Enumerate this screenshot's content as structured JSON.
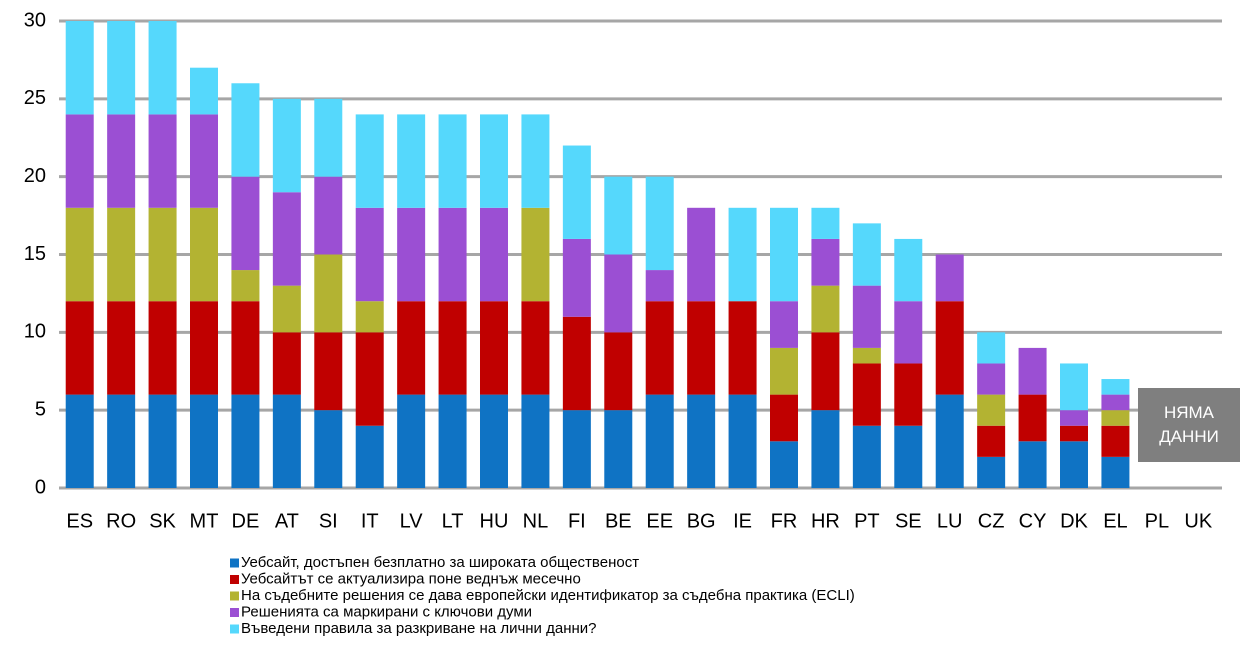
{
  "chart_data": {
    "type": "stacked-bar",
    "categories": [
      "ES",
      "RO",
      "SK",
      "MT",
      "DE",
      "AT",
      "SI",
      "IT",
      "LV",
      "LT",
      "HU",
      "NL",
      "FI",
      "BE",
      "EE",
      "BG",
      "IE",
      "FR",
      "HR",
      "PT",
      "SE",
      "LU",
      "CZ",
      "CY",
      "DK",
      "EL",
      "PL",
      "UK"
    ],
    "series": [
      {
        "name": "Уебсайт, достъпен безплатно за широката общественост",
        "color": "#0f73c4",
        "values": [
          6,
          6,
          6,
          6,
          6,
          6,
          5,
          4,
          6,
          6,
          6,
          6,
          5,
          5,
          6,
          6,
          6,
          3,
          5,
          4,
          4,
          6,
          2,
          3,
          3,
          2,
          null,
          null
        ]
      },
      {
        "name": "Уебсайтът се актуализира поне веднъж месечно",
        "color": "#c00000",
        "values": [
          6,
          6,
          6,
          6,
          6,
          4,
          5,
          6,
          6,
          6,
          6,
          6,
          6,
          5,
          6,
          6,
          6,
          3,
          5,
          4,
          4,
          6,
          2,
          3,
          1,
          2,
          null,
          null
        ]
      },
      {
        "name": "На съдебните решения се дава европейски идентификатор за съдебна практика (ECLI)",
        "color": "#b3b332",
        "values": [
          6,
          6,
          6,
          6,
          2,
          3,
          5,
          2,
          0,
          0,
          0,
          6,
          0,
          0,
          0,
          0,
          0,
          3,
          3,
          1,
          0,
          0,
          2,
          0,
          0,
          1,
          null,
          null
        ]
      },
      {
        "name": "Решенията са маркирани с ключови думи",
        "color": "#9b4fd3",
        "values": [
          6,
          6,
          6,
          6,
          6,
          6,
          5,
          6,
          6,
          6,
          6,
          0,
          5,
          5,
          2,
          6,
          0,
          3,
          3,
          4,
          4,
          3,
          2,
          3,
          1,
          1,
          null,
          null
        ]
      },
      {
        "name": "Въведени правила за разкриване на лични данни?",
        "color": "#55d8fc",
        "values": [
          6,
          6,
          6,
          3,
          6,
          6,
          5,
          6,
          6,
          6,
          6,
          6,
          6,
          5,
          6,
          0,
          6,
          6,
          2,
          4,
          4,
          0,
          2,
          0,
          3,
          1,
          null,
          null
        ]
      }
    ],
    "ylim": [
      0,
      30
    ],
    "yticks": [
      0,
      5,
      10,
      15,
      20,
      25,
      30
    ],
    "grid": true,
    "annotation": "НЯМА ДАННИ"
  }
}
